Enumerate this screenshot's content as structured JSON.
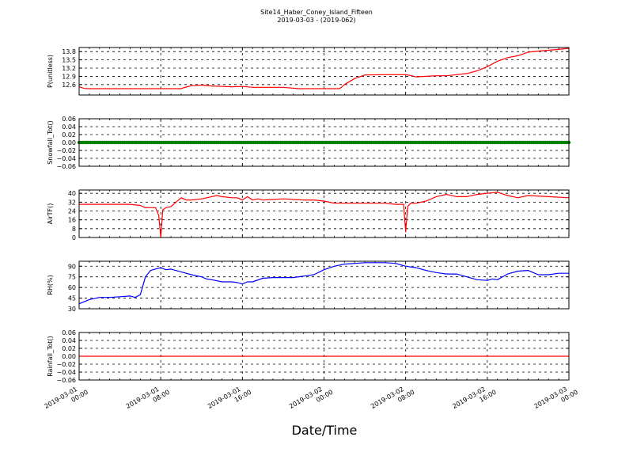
{
  "figure": {
    "title": "Site14_Haber_Coney_Island_Fifteen",
    "subtitle": "2019-03-03 - (2019-062)",
    "xlabel": "Date/Time",
    "xticks": [
      {
        "l1": "2019-03-01",
        "l2": "00:00",
        "t": 0
      },
      {
        "l1": "2019-03-01",
        "l2": "08:00",
        "t": 8
      },
      {
        "l1": "2019-03-01",
        "l2": "16:00",
        "t": 16
      },
      {
        "l1": "2019-03-02",
        "l2": "00:00",
        "t": 24
      },
      {
        "l1": "2019-03-02",
        "l2": "08:00",
        "t": 32
      },
      {
        "l1": "2019-03-02",
        "l2": "16:00",
        "t": 40
      },
      {
        "l1": "2019-03-03",
        "l2": "00:00",
        "t": 48
      }
    ]
  },
  "chart_data": [
    {
      "type": "line",
      "ylabel": "P(unitless)",
      "ylim": [
        12.22,
        13.95
      ],
      "yticks": [
        "12.6",
        "12.9",
        "13.2",
        "13.5",
        "13.8"
      ],
      "ytick_values": [
        12.6,
        12.9,
        13.2,
        13.5,
        13.8
      ],
      "grid": true,
      "color": "#ff0000",
      "x_unit": "hours since 2019-03-01 00:00",
      "x": [
        0,
        0.5,
        1,
        2,
        4,
        6,
        8,
        10,
        10.2,
        11,
        12,
        13,
        14,
        15,
        16,
        17,
        18,
        20,
        21.5,
        22.5,
        24,
        25.5,
        25.7,
        26,
        27,
        28,
        30,
        31,
        32,
        32.5,
        33,
        34,
        35,
        36,
        37,
        38,
        39,
        40,
        41,
        42,
        43,
        44,
        45,
        46,
        47,
        48
      ],
      "values": [
        12.52,
        12.46,
        12.45,
        12.45,
        12.45,
        12.45,
        12.45,
        12.45,
        12.48,
        12.56,
        12.58,
        12.55,
        12.53,
        12.52,
        12.53,
        12.5,
        12.5,
        12.5,
        12.45,
        12.45,
        12.45,
        12.45,
        12.5,
        12.6,
        12.82,
        12.95,
        12.96,
        12.96,
        12.96,
        12.93,
        12.88,
        12.9,
        12.92,
        12.92,
        12.96,
        13.0,
        13.1,
        13.25,
        13.45,
        13.58,
        13.65,
        13.78,
        13.82,
        13.85,
        13.88,
        13.92
      ]
    },
    {
      "type": "scatter",
      "ylabel": "Snowfall_Tot()",
      "ylim": [
        -0.06,
        0.06
      ],
      "yticks": [
        "0.06",
        "0.04",
        "0.02",
        "0.00",
        "−0.02",
        "−0.04",
        "−0.06"
      ],
      "ytick_values": [
        0.06,
        0.04,
        0.02,
        0.0,
        -0.02,
        -0.04,
        -0.06
      ],
      "grid": true,
      "color": "#008000",
      "x_unit": "hours since 2019-03-01 00:00",
      "x_range": [
        0,
        48
      ],
      "constant_value": 0.0
    },
    {
      "type": "line",
      "ylabel": "AirTF()",
      "ylim": [
        0,
        43
      ],
      "yticks": [
        "40",
        "32",
        "24",
        "16",
        "8",
        "0"
      ],
      "ytick_values": [
        40,
        32,
        24,
        16,
        8,
        0
      ],
      "grid": true,
      "color": "#ff0000",
      "x_unit": "hours since 2019-03-01 00:00",
      "x": [
        0,
        1,
        2,
        3,
        4,
        5,
        6,
        6.5,
        7,
        7.5,
        7.8,
        8.0,
        8.2,
        8.5,
        9,
        9.5,
        10,
        10.5,
        11,
        12,
        13,
        13.5,
        14,
        15,
        15.5,
        16,
        16.5,
        17,
        17.5,
        18,
        20,
        22,
        23,
        24,
        25,
        26,
        28,
        30,
        31,
        31.8,
        32.0,
        32.2,
        32.5,
        33,
        34,
        35,
        36,
        37,
        38,
        39,
        40,
        41,
        42,
        43,
        44,
        46,
        48
      ],
      "values": [
        30,
        30,
        30,
        30,
        30,
        30,
        29,
        27,
        27,
        27,
        20,
        0,
        25,
        27,
        28,
        32,
        36,
        34,
        34,
        35,
        37,
        38,
        37,
        36,
        36,
        34,
        37,
        34,
        35,
        34,
        35,
        34,
        34,
        33,
        31,
        31,
        31,
        31,
        30,
        30,
        5,
        28,
        31,
        31,
        33,
        37,
        39,
        37,
        37,
        39,
        40,
        41,
        38,
        36,
        38,
        37,
        36
      ]
    },
    {
      "type": "line",
      "ylabel": "RH(%)",
      "ylim": [
        30,
        97
      ],
      "yticks": [
        "90",
        "75",
        "60",
        "45",
        "30"
      ],
      "ytick_values": [
        90,
        75,
        60,
        45,
        30
      ],
      "grid": true,
      "color": "#0000ff",
      "x_unit": "hours since 2019-03-01 00:00",
      "x": [
        0,
        1,
        2,
        3,
        4,
        5,
        5.5,
        6,
        6.5,
        7,
        8,
        8.5,
        9,
        10,
        11,
        12,
        12.5,
        13,
        14,
        15,
        15.5,
        16,
        16.5,
        17,
        18,
        19,
        20,
        21,
        22,
        23,
        24,
        25,
        26,
        28,
        30,
        31,
        32,
        33,
        34,
        35,
        36,
        37,
        38,
        39,
        40,
        40.5,
        41,
        42,
        43,
        44,
        44.5,
        45,
        46,
        47,
        48
      ],
      "values": [
        37,
        43,
        46,
        46,
        47,
        48,
        46,
        50,
        75,
        84,
        88,
        85,
        86,
        82,
        78,
        75,
        72,
        71,
        68,
        68,
        67,
        65,
        68,
        68,
        73,
        74,
        74,
        74,
        76,
        78,
        85,
        90,
        93,
        95,
        95,
        94,
        90,
        88,
        84,
        81,
        79,
        79,
        75,
        71,
        70,
        72,
        71,
        79,
        83,
        84,
        81,
        78,
        78,
        80,
        80
      ]
    },
    {
      "type": "line",
      "ylabel": "Rainfall_Tot()",
      "ylim": [
        -0.06,
        0.06
      ],
      "yticks": [
        "0.06",
        "0.04",
        "0.02",
        "0.00",
        "−0.02",
        "−0.04",
        "−0.06"
      ],
      "ytick_values": [
        0.06,
        0.04,
        0.02,
        0.0,
        -0.02,
        -0.04,
        -0.06
      ],
      "grid": true,
      "color": "#ff0000",
      "x_unit": "hours since 2019-03-01 00:00",
      "x": [
        0,
        48
      ],
      "values": [
        0.0,
        0.0
      ]
    }
  ]
}
